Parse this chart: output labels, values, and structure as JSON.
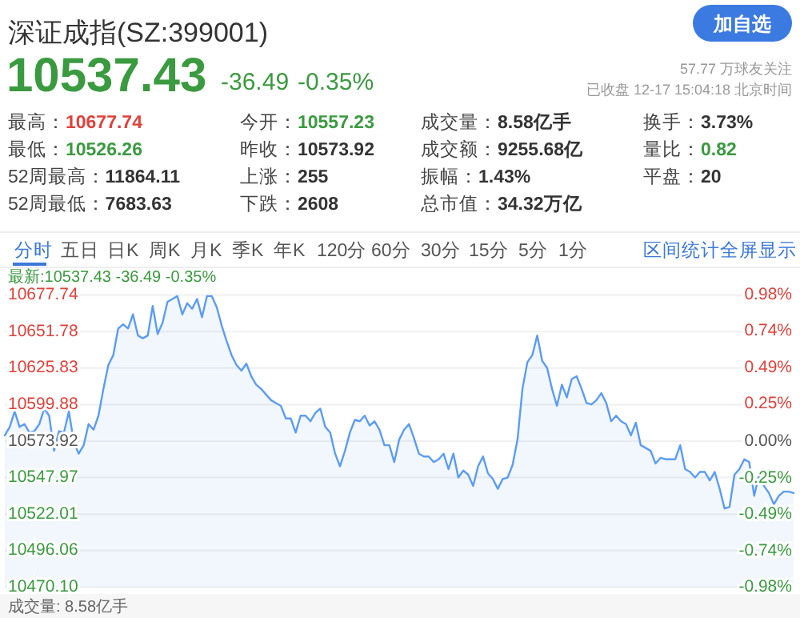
{
  "chart_data": [
    {
      "type": "other",
      "title": "深证成指(SZ:399001)",
      "annotations": [
        "10537.43",
        "-36.49",
        "-0.35%",
        "57.77 万球友关注",
        "已收盘 12-17 15:04:18 北京时间",
        "最高：10677.74",
        "最低：10526.26",
        "52周最高：11864.11",
        "52周最低：7683.63",
        "今开：10557.23",
        "昨收：10573.92",
        "上涨：255",
        "下跌：2608",
        "成交量：8.58亿手",
        "成交额：9255.68亿",
        "振幅：1.43%",
        "总市值：34.32万亿",
        "换手：3.73%",
        "量比：0.82",
        "平盘：20",
        "分时",
        "五日",
        "日K",
        "周K",
        "月K",
        "季K",
        "年K",
        "120分",
        "60分",
        "30分",
        "15分",
        "5分",
        "1分",
        "区间统计",
        "全屏显示",
        "加自选"
      ]
    },
    {
      "type": "area",
      "annotations": [
        "最新:10537.43 -36.49 -0.35%",
        "成交量: 8.58亿手"
      ],
      "categories": [
        null,
        null,
        null,
        null,
        null,
        null,
        null,
        null,
        null,
        null,
        null,
        null,
        null,
        null,
        null,
        null,
        null,
        null,
        null,
        null,
        null,
        null,
        null,
        null,
        null,
        null,
        null,
        null,
        null,
        null,
        null,
        null,
        null,
        null,
        null,
        null,
        null,
        null,
        null,
        null,
        null,
        null,
        null,
        null,
        null,
        null,
        null,
        null,
        null,
        null,
        null,
        null,
        null,
        null,
        null,
        null,
        null,
        null,
        null,
        null,
        null,
        null,
        null,
        null,
        null,
        null,
        null,
        null,
        null,
        null,
        null,
        null,
        null,
        null,
        null,
        null,
        null,
        null,
        null,
        null,
        null,
        null,
        null,
        null,
        null,
        null,
        null,
        null,
        null,
        null,
        null,
        null,
        null,
        null,
        null,
        null,
        null,
        null,
        null,
        null,
        null,
        null,
        null,
        null,
        null,
        null,
        null,
        null,
        null,
        null,
        null,
        null,
        null,
        null,
        null,
        null,
        null,
        null,
        null,
        null,
        null,
        null,
        null,
        null,
        null,
        null,
        null,
        null,
        null,
        null,
        null,
        null,
        null,
        null,
        null,
        null,
        null,
        null,
        null,
        null,
        null,
        null,
        null,
        null,
        null,
        null,
        null,
        null,
        null,
        null,
        null,
        null,
        null,
        null,
        null,
        null,
        null,
        null,
        null,
        null,
        null
      ],
      "series": [
        {
          "color": "#5b9cf5",
          "values": [
            10578,
            10584,
            10595,
            10584,
            10586,
            10580,
            10581,
            10586,
            10597,
            10592,
            10567,
            10581,
            10580,
            10595,
            10573,
            10565,
            10571,
            10586,
            10582,
            10592,
            10611,
            10628,
            10635,
            10654,
            10657,
            10654,
            10664,
            10649,
            10647,
            10649,
            10670,
            10650,
            10658,
            10673,
            10675,
            10677,
            10664,
            10672,
            10668,
            10675,
            10662,
            10677,
            10677,
            10669,
            10656,
            10645,
            10635,
            10628,
            10624,
            10629,
            10620,
            10614,
            10611,
            10607,
            10603,
            10601,
            10599,
            10590,
            10590,
            10580,
            10592,
            10592,
            10588,
            10594,
            10597,
            10584,
            10580,
            10565,
            10556,
            10567,
            10580,
            10589,
            10588,
            10592,
            10585,
            10588,
            10582,
            10571,
            10571,
            10559,
            10575,
            10582,
            10586,
            10576,
            10565,
            10563,
            10563,
            10559,
            10561,
            10565,
            10554,
            10565,
            10548,
            10553,
            10550,
            10542,
            10556,
            10563,
            10551,
            10547,
            10540,
            10547,
            10548,
            10557,
            10575,
            10611,
            10630,
            10635,
            10649,
            10631,
            10626,
            10611,
            10599,
            10614,
            10605,
            10618,
            10620,
            10611,
            10601,
            10600,
            10603,
            10608,
            10601,
            10588,
            10592,
            10588,
            10586,
            10578,
            10587,
            10571,
            10569,
            10567,
            10558,
            10562,
            10561,
            10561,
            10561,
            10571,
            10554,
            10552,
            10548,
            10552,
            10552,
            10546,
            10552,
            10540,
            10526,
            10527,
            10550,
            10554,
            10561,
            10559,
            10535,
            10550,
            10542,
            10537,
            10529,
            10535,
            10538,
            10538,
            10537
          ]
        }
      ],
      "ylim": [
        10470.1,
        10677.74
      ],
      "yticks": [
        {
          "value": 10677.74,
          "label": "10677.74"
        },
        {
          "value": 10651.78,
          "label": "10651.78"
        },
        {
          "value": 10625.83,
          "label": "10625.83"
        },
        {
          "value": 10599.88,
          "label": "10599.88"
        },
        {
          "value": 10573.92,
          "label": "10573.92"
        },
        {
          "value": 10547.97,
          "label": "10547.97"
        },
        {
          "value": 10522.01,
          "label": "10522.01"
        },
        {
          "value": 10496.06,
          "label": "10496.06"
        },
        {
          "value": 10470.1,
          "label": "10470.10"
        }
      ],
      "y2lim": [
        -0.98,
        0.98
      ],
      "y2ticks": [
        {
          "value": 0.98,
          "label": "0.98%"
        },
        {
          "value": 0.74,
          "label": "0.74%"
        },
        {
          "value": 0.49,
          "label": "0.49%"
        },
        {
          "value": 0.25,
          "label": "0.25%"
        },
        {
          "value": 0,
          "label": "0.00%"
        },
        {
          "value": -0.25,
          "label": "-0.25%"
        },
        {
          "value": -0.49,
          "label": "-0.49%"
        },
        {
          "value": -0.74,
          "label": "-0.74%"
        },
        {
          "value": -0.98,
          "label": "-0.98%"
        }
      ],
      "grid": "y"
    }
  ]
}
